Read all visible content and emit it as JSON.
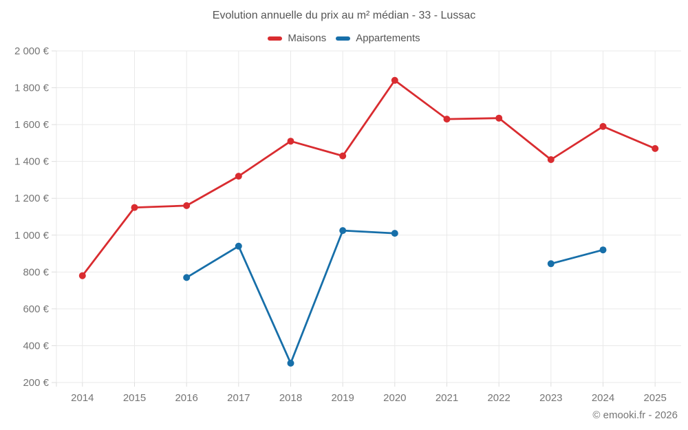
{
  "chart_data": {
    "type": "line",
    "title": "Evolution annuelle du prix au m² médian - 33 - Lussac",
    "categories": [
      "2014",
      "2015",
      "2016",
      "2017",
      "2018",
      "2019",
      "2020",
      "2021",
      "2022",
      "2023",
      "2024",
      "2025"
    ],
    "series": [
      {
        "name": "Maisons",
        "color": "#d92c30",
        "values": [
          780,
          1150,
          1160,
          1320,
          1510,
          1430,
          1840,
          1630,
          1635,
          1410,
          1590,
          1470
        ]
      },
      {
        "name": "Appartements",
        "color": "#176fa9",
        "values": [
          null,
          null,
          770,
          940,
          305,
          1025,
          1010,
          null,
          null,
          845,
          920,
          null
        ]
      }
    ],
    "y_axis": {
      "min": 200,
      "max": 2000,
      "step": 200,
      "tick_labels_top_to_bottom": [
        "2 000 €",
        "1 800 €",
        "1 600 €",
        "1 400 €",
        "1 200 €",
        "1 000 €",
        "800 €",
        "600 €",
        "400 €",
        "200 €"
      ]
    },
    "x_axis": {
      "tick_labels": [
        "2014",
        "2015",
        "2016",
        "2017",
        "2018",
        "2019",
        "2020",
        "2021",
        "2022",
        "2023",
        "2024",
        "2025"
      ]
    },
    "grid": true,
    "legend_position": "top",
    "colors": {
      "grid": "#e9e9e9",
      "axis": "#dddddd",
      "tick_text": "#757575",
      "title_text": "#555555"
    }
  },
  "footer": {
    "copyright": "© emooki.fr - 2026"
  }
}
